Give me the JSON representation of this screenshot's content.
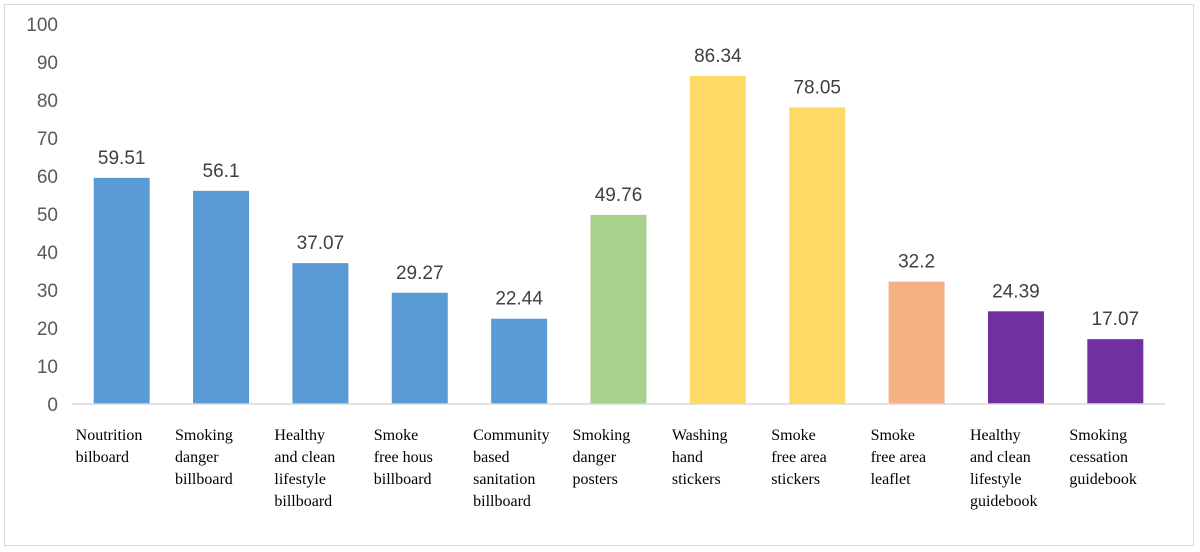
{
  "chart_data": {
    "type": "bar",
    "categories": [
      [
        "Noutrition",
        "bilboard"
      ],
      [
        "Smoking",
        "danger",
        "billboard"
      ],
      [
        "Healthy",
        "and clean",
        "lifestyle",
        "billboard"
      ],
      [
        "Smoke",
        "free hous",
        "billboard"
      ],
      [
        "Community",
        "based",
        "sanitation",
        "billboard"
      ],
      [
        "Smoking",
        "danger",
        "posters"
      ],
      [
        "Washing",
        "hand",
        "stickers"
      ],
      [
        "Smoke",
        "free area",
        "stickers"
      ],
      [
        "Smoke",
        "free area",
        "leaflet"
      ],
      [
        "Healthy",
        "and clean",
        "lifestyle",
        "guidebook"
      ],
      [
        "Smoking",
        "cessation",
        "guidebook"
      ]
    ],
    "values": [
      59.51,
      56.1,
      37.07,
      29.27,
      22.44,
      49.76,
      86.34,
      78.05,
      32.2,
      24.39,
      17.07
    ],
    "value_labels": [
      "59.51",
      "56.1",
      "37.07",
      "29.27",
      "22.44",
      "49.76",
      "86.34",
      "78.05",
      "32.2",
      "24.39",
      "17.07"
    ],
    "colors": [
      "#5b9bd5",
      "#5b9bd5",
      "#5b9bd5",
      "#5b9bd5",
      "#5b9bd5",
      "#a9d18e",
      "#ffd966",
      "#ffd966",
      "#f4b183",
      "#7030a0",
      "#7030a0"
    ],
    "yticks": [
      0,
      10,
      20,
      30,
      40,
      50,
      60,
      70,
      80,
      90,
      100
    ],
    "ylim": [
      0,
      100
    ],
    "title": "",
    "xlabel": "",
    "ylabel": "",
    "grid": false,
    "legend": "none",
    "axis_color": "#d9d9d9"
  }
}
